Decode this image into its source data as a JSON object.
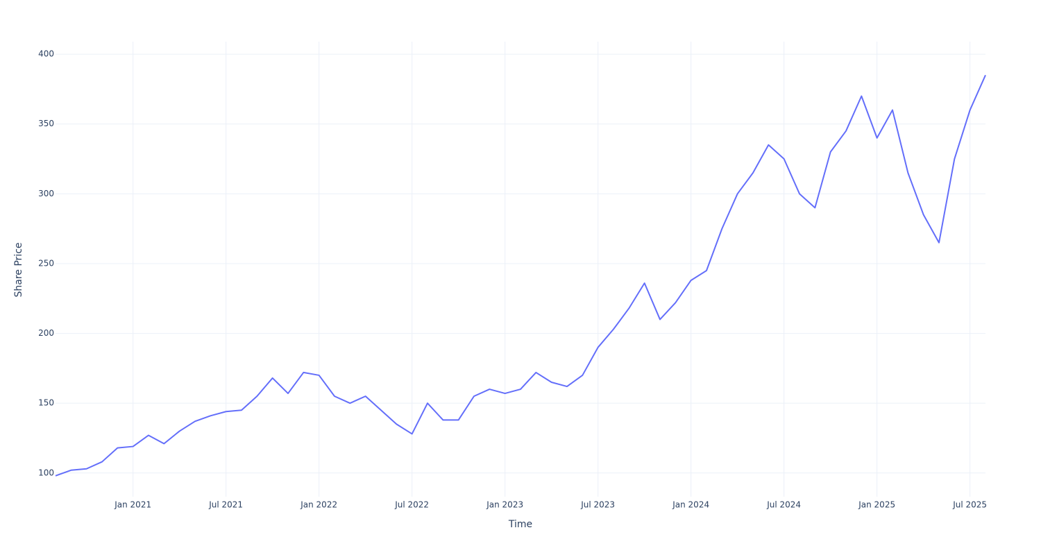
{
  "chart_data": {
    "type": "line",
    "x_label": "Time",
    "y_label": "Share Price",
    "x": [
      "2020-08",
      "2020-09",
      "2020-10",
      "2020-11",
      "2020-12",
      "2021-01",
      "2021-02",
      "2021-03",
      "2021-04",
      "2021-05",
      "2021-06",
      "2021-07",
      "2021-08",
      "2021-09",
      "2021-10",
      "2021-11",
      "2021-12",
      "2022-01",
      "2022-02",
      "2022-03",
      "2022-04",
      "2022-05",
      "2022-06",
      "2022-07",
      "2022-08",
      "2022-09",
      "2022-10",
      "2022-11",
      "2022-12",
      "2023-01",
      "2023-02",
      "2023-03",
      "2023-04",
      "2023-05",
      "2023-06",
      "2023-07",
      "2023-08",
      "2023-09",
      "2023-10",
      "2023-11",
      "2023-12",
      "2024-01",
      "2024-02",
      "2024-03",
      "2024-04",
      "2024-05",
      "2024-06",
      "2024-07",
      "2024-08",
      "2024-09",
      "2024-10",
      "2024-11",
      "2024-12",
      "2025-01",
      "2025-02",
      "2025-03",
      "2025-04",
      "2025-05",
      "2025-06",
      "2025-07",
      "2025-08"
    ],
    "series": [
      {
        "color": "#636efa",
        "values": [
          98,
          102,
          103,
          108,
          118,
          119,
          127,
          121,
          130,
          137,
          141,
          144,
          145,
          155,
          168,
          157,
          172,
          170,
          155,
          150,
          155,
          145,
          135,
          128,
          150,
          138,
          138,
          155,
          160,
          157,
          160,
          172,
          165,
          162,
          170,
          190,
          203,
          218,
          236,
          210,
          222,
          238,
          245,
          275,
          300,
          315,
          335,
          325,
          300,
          290,
          330,
          345,
          370,
          340,
          360,
          315,
          285,
          265,
          325,
          360,
          385
        ]
      }
    ],
    "xlim": [
      "2020-08",
      "2025-08"
    ],
    "xticks": [
      {
        "value": "2021-01",
        "label": "Jan 2021"
      },
      {
        "value": "2021-07",
        "label": "Jul 2021"
      },
      {
        "value": "2022-01",
        "label": "Jan 2022"
      },
      {
        "value": "2022-07",
        "label": "Jul 2022"
      },
      {
        "value": "2023-01",
        "label": "Jan 2023"
      },
      {
        "value": "2023-07",
        "label": "Jul 2023"
      },
      {
        "value": "2024-01",
        "label": "Jan 2024"
      },
      {
        "value": "2024-07",
        "label": "Jul 2024"
      },
      {
        "value": "2025-01",
        "label": "Jan 2025"
      },
      {
        "value": "2025-07",
        "label": "Jul 2025"
      }
    ],
    "ylim": [
      83,
      409
    ],
    "yticks": [
      100,
      150,
      200,
      250,
      300,
      350,
      400
    ],
    "grid": true
  }
}
